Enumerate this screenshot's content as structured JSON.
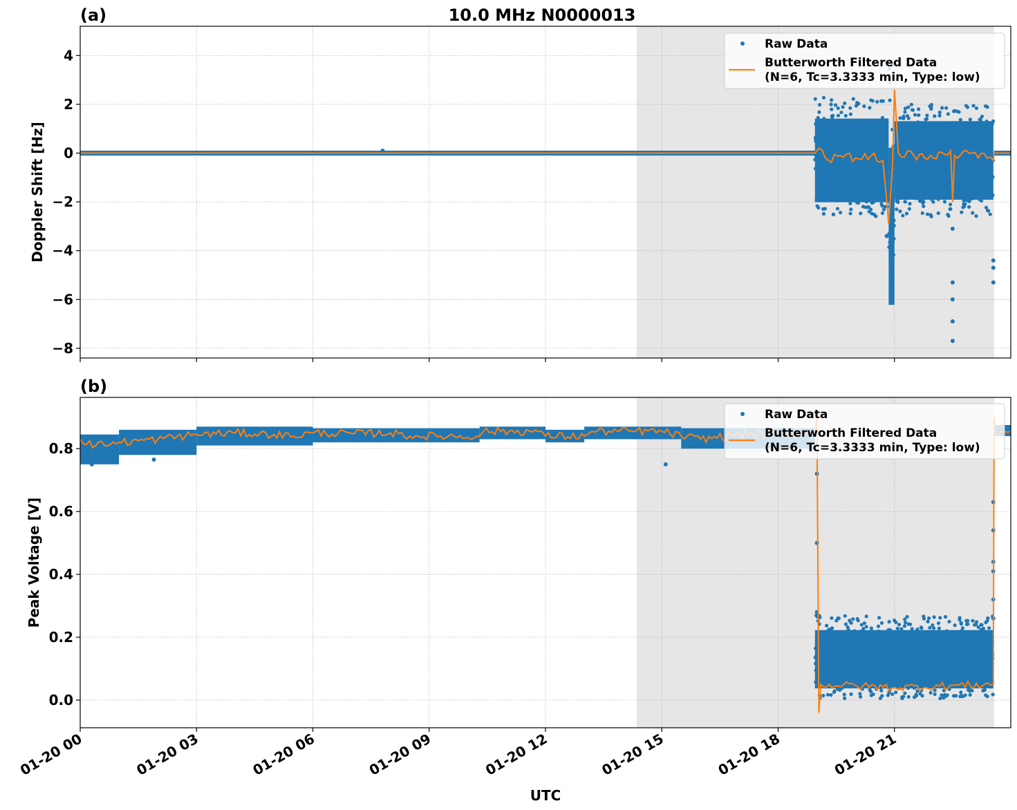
{
  "title": "10.0 MHz N0000013",
  "colors": {
    "raw": "#1f77b4",
    "filtered": "#ff7f0e",
    "shade": "#e6e6e6",
    "grid": "#b0b0b0"
  },
  "legend": {
    "raw_label": "Raw Data",
    "filtered_label_line1": "Butterworth Filtered Data",
    "filtered_label_line2": "(N=6, Tc=3.3333 min, Type: low)"
  },
  "xaxis": {
    "label": "UTC",
    "ticks": [
      "01-20 00",
      "01-20 03",
      "01-20 06",
      "01-20 09",
      "01-20 12",
      "01-20 15",
      "01-20 18",
      "01-20 21"
    ],
    "tick_hours": [
      0,
      3,
      6,
      9,
      12,
      15,
      18,
      21
    ],
    "range_hours": [
      0,
      24
    ]
  },
  "shaded_region_hours": [
    14.35,
    23.57
  ],
  "panels": {
    "a": {
      "label": "(a)",
      "ylabel": "Doppler Shift [Hz]",
      "yticks": [
        "4",
        "2",
        "0",
        "−2",
        "−4",
        "−6",
        "−8"
      ]
    },
    "b": {
      "label": "(b)",
      "ylabel": "Peak Voltage [V]",
      "yticks": [
        "0.8",
        "0.6",
        "0.4",
        "0.2",
        "0.0"
      ]
    }
  },
  "chart_data": [
    {
      "type": "scatter",
      "title": "10.0 MHz N0000013",
      "panel": "(a)",
      "xlabel": "UTC",
      "ylabel": "Doppler Shift [Hz]",
      "ylim": [
        -8.4,
        5.2
      ],
      "yticks": [
        4,
        2,
        0,
        -2,
        -4,
        -6,
        -8
      ],
      "x_unit": "hours since 01-20 00 UTC",
      "xlim": [
        0,
        24
      ],
      "grid": true,
      "legend_position": "upper right",
      "shaded_span_hours": [
        14.35,
        23.57
      ],
      "series": [
        {
          "name": "Raw Data",
          "style": "points",
          "segments": [
            {
              "x_range": [
                0,
                18.95
              ],
              "center": 0.0,
              "spread": [
                -0.1,
                0.1
              ]
            },
            {
              "x_range": [
                18.95,
                20.85
              ],
              "center": -0.3,
              "spread": [
                -2.6,
                2.3
              ]
            },
            {
              "x_range": [
                20.85,
                21.0
              ],
              "center": -3.0,
              "spread": [
                -4.6,
                4.6
              ]
            },
            {
              "x_range": [
                21.0,
                23.55
              ],
              "center": -0.3,
              "spread": [
                -2.6,
                2.0
              ]
            },
            {
              "x_range": [
                23.57,
                24
              ],
              "center": 0.0,
              "spread": [
                -0.1,
                0.1
              ]
            }
          ],
          "outliers": [
            [
              22.5,
              -3.1
            ],
            [
              22.5,
              -5.3
            ],
            [
              22.5,
              -6.0
            ],
            [
              22.5,
              -6.9
            ],
            [
              22.5,
              -7.7
            ],
            [
              23.55,
              -4.4
            ],
            [
              23.55,
              -4.7
            ],
            [
              23.55,
              -5.3
            ],
            [
              20.8,
              -3.4
            ],
            [
              7.8,
              0.1
            ]
          ]
        },
        {
          "name": "Butterworth Filtered Data (N=6, Tc=3.3333 min, Type: low)",
          "style": "line",
          "points": [
            [
              0,
              0.0
            ],
            [
              18.95,
              0.0
            ],
            [
              19.05,
              0.2
            ],
            [
              19.3,
              -0.3
            ],
            [
              19.6,
              -0.1
            ],
            [
              20.0,
              -0.2
            ],
            [
              20.4,
              -0.1
            ],
            [
              20.7,
              -0.3
            ],
            [
              20.85,
              -2.9
            ],
            [
              20.95,
              -0.5
            ],
            [
              21.0,
              2.6
            ],
            [
              21.1,
              0.0
            ],
            [
              21.5,
              -0.1
            ],
            [
              22.0,
              -0.2
            ],
            [
              22.45,
              0.1
            ],
            [
              22.5,
              -2.0
            ],
            [
              22.55,
              -0.1
            ],
            [
              23.0,
              0.0
            ],
            [
              23.55,
              -0.3
            ],
            [
              23.57,
              0.0
            ],
            [
              24,
              0.0
            ]
          ]
        }
      ]
    },
    {
      "type": "scatter",
      "panel": "(b)",
      "xlabel": "UTC",
      "ylabel": "Peak Voltage [V]",
      "ylim": [
        -0.088,
        0.963
      ],
      "yticks": [
        0.8,
        0.6,
        0.4,
        0.2,
        0.0
      ],
      "x_unit": "hours since 01-20 00 UTC",
      "xlim": [
        0,
        24
      ],
      "grid": true,
      "legend_position": "upper right",
      "shaded_span_hours": [
        14.35,
        23.57
      ],
      "series": [
        {
          "name": "Raw Data",
          "style": "points",
          "segments": [
            {
              "x_range": [
                0,
                1.0
              ],
              "center": 0.815,
              "spread": [
                0.75,
                0.845
              ]
            },
            {
              "x_range": [
                1.0,
                3.0
              ],
              "center": 0.83,
              "spread": [
                0.78,
                0.86
              ]
            },
            {
              "x_range": [
                3.0,
                6.0
              ],
              "center": 0.85,
              "spread": [
                0.81,
                0.87
              ]
            },
            {
              "x_range": [
                6.0,
                10.3
              ],
              "center": 0.845,
              "spread": [
                0.82,
                0.865
              ]
            },
            {
              "x_range": [
                10.3,
                12.0
              ],
              "center": 0.855,
              "spread": [
                0.83,
                0.87
              ]
            },
            {
              "x_range": [
                12.0,
                13.0
              ],
              "center": 0.84,
              "spread": [
                0.82,
                0.86
              ]
            },
            {
              "x_range": [
                13.0,
                15.5
              ],
              "center": 0.855,
              "spread": [
                0.83,
                0.87
              ]
            },
            {
              "x_range": [
                15.5,
                18.95
              ],
              "center": 0.84,
              "spread": [
                0.8,
                0.865
              ]
            },
            {
              "x_range": [
                18.95,
                23.55
              ],
              "center": 0.13,
              "spread": [
                0.005,
                0.27
              ]
            },
            {
              "x_range": [
                23.57,
                24
              ],
              "center": 0.86,
              "spread": [
                0.84,
                0.875
              ]
            }
          ],
          "outliers": [
            [
              0.3,
              0.75
            ],
            [
              1.9,
              0.765
            ],
            [
              15.1,
              0.75
            ],
            [
              19.0,
              0.72
            ],
            [
              19.0,
              0.5
            ],
            [
              19.0,
              0.28
            ],
            [
              23.55,
              0.63
            ],
            [
              23.55,
              0.54
            ],
            [
              23.55,
              0.44
            ],
            [
              23.55,
              0.41
            ],
            [
              23.55,
              0.32
            ],
            [
              23.55,
              0.26
            ]
          ]
        },
        {
          "name": "Butterworth Filtered Data (N=6, Tc=3.3333 min, Type: low)",
          "style": "line",
          "points": [
            [
              0,
              0.83
            ],
            [
              0.4,
              0.81
            ],
            [
              1.0,
              0.82
            ],
            [
              2.0,
              0.83
            ],
            [
              3.0,
              0.845
            ],
            [
              4.0,
              0.85
            ],
            [
              5.0,
              0.845
            ],
            [
              5.5,
              0.84
            ],
            [
              6.0,
              0.85
            ],
            [
              7.0,
              0.848
            ],
            [
              8.0,
              0.85
            ],
            [
              8.5,
              0.84
            ],
            [
              10.3,
              0.84
            ],
            [
              10.4,
              0.855
            ],
            [
              11.8,
              0.855
            ],
            [
              12.0,
              0.84
            ],
            [
              13.0,
              0.84
            ],
            [
              13.2,
              0.855
            ],
            [
              15.0,
              0.855
            ],
            [
              15.5,
              0.84
            ],
            [
              16.0,
              0.83
            ],
            [
              17.0,
              0.845
            ],
            [
              18.95,
              0.85
            ],
            [
              19.0,
              0.9
            ],
            [
              19.05,
              -0.04
            ],
            [
              19.1,
              0.05
            ],
            [
              21.0,
              0.04
            ],
            [
              23.55,
              0.05
            ],
            [
              23.57,
              0.9
            ],
            [
              23.6,
              0.85
            ],
            [
              24,
              0.855
            ]
          ]
        }
      ]
    }
  ]
}
